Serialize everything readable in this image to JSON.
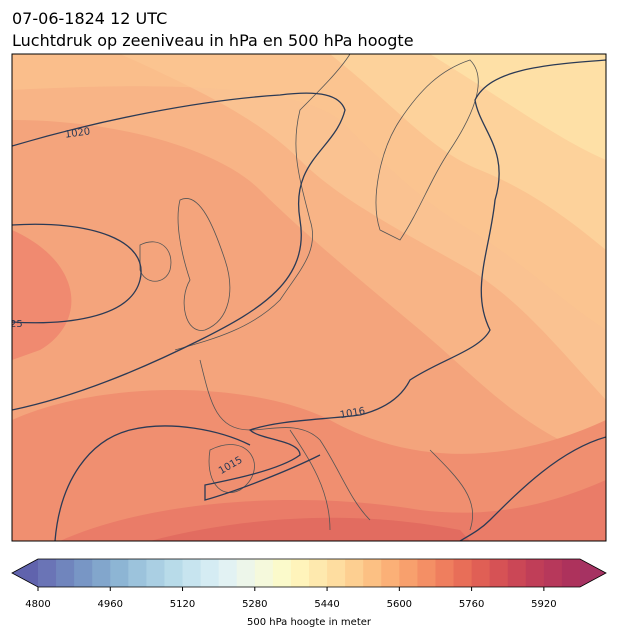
{
  "header": {
    "title": [
      "07-06-1824 12 UTC",
      "Luchtdruk op zeeniveau in hPa en 500 hPa hoogte"
    ]
  },
  "map": {
    "contour_labels": [
      "1020",
      "25",
      "1016",
      "1015"
    ]
  },
  "colorbar": {
    "label": "500 hPa hoogte in meter",
    "lim": [
      4800,
      6000
    ],
    "ticks": [
      4800,
      4960,
      5120,
      5280,
      5440,
      5600,
      5760,
      5920
    ],
    "colors": [
      "#6a74b6",
      "#7085bd",
      "#7896c5",
      "#82a6cc",
      "#8db5d4",
      "#9cc3dc",
      "#aacfe3",
      "#b8dbe9",
      "#c7e4ef",
      "#d5ecf3",
      "#e2f2f3",
      "#edf6ea",
      "#f5f9dc",
      "#fbfacb",
      "#fff4bb",
      "#fee9ae",
      "#fedda0",
      "#fdcf91",
      "#fcc083",
      "#fbb077",
      "#f8a06d",
      "#f48f65",
      "#ef7e5e",
      "#e86e58",
      "#e05f55",
      "#d65255",
      "#cb4756",
      "#c03e58",
      "#b7385b",
      "#ad325c"
    ],
    "under_color": "#6063ad",
    "over_color": "#a63262"
  }
}
